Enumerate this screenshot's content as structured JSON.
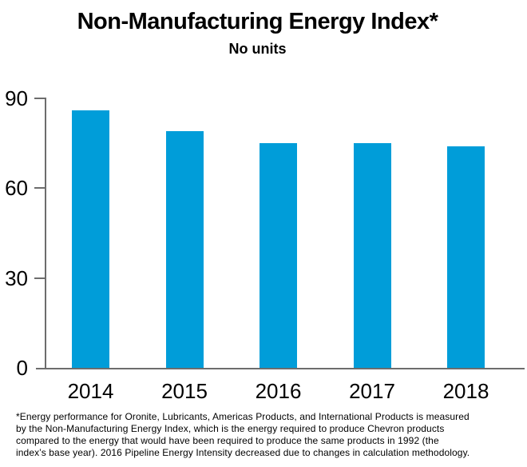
{
  "header": {
    "title": "Non-Manufacturing Energy Index*",
    "subtitle": "No units"
  },
  "footnote": {
    "lines": [
      "*Energy performance for Oronite, Lubricants, Americas Products, and International Products is measured",
      "by the Non-Manufacturing Energy Index, which is the energy required to produce Chevron products",
      "compared to the energy that would have been required to produce the same products in 1992 (the",
      "index’s base year). 2016 Pipeline Energy Intensity decreased due to changes in calculation methodology."
    ]
  },
  "colors": {
    "bar": "#009DD9",
    "axis": "#6d6d6d",
    "text": "#000000",
    "background": "#ffffff"
  },
  "chart_data": {
    "type": "bar",
    "title": "Non-Manufacturing Energy Index*",
    "subtitle": "No units",
    "categories": [
      "2014",
      "2015",
      "2016",
      "2017",
      "2018"
    ],
    "values": [
      86,
      79,
      75,
      75,
      74
    ],
    "xlabel": "",
    "ylabel": "No units",
    "ylim": [
      0,
      90
    ],
    "yticks": [
      0,
      30,
      60,
      90
    ],
    "grid": false,
    "legend": "none",
    "bar_color": "#009DD9"
  }
}
